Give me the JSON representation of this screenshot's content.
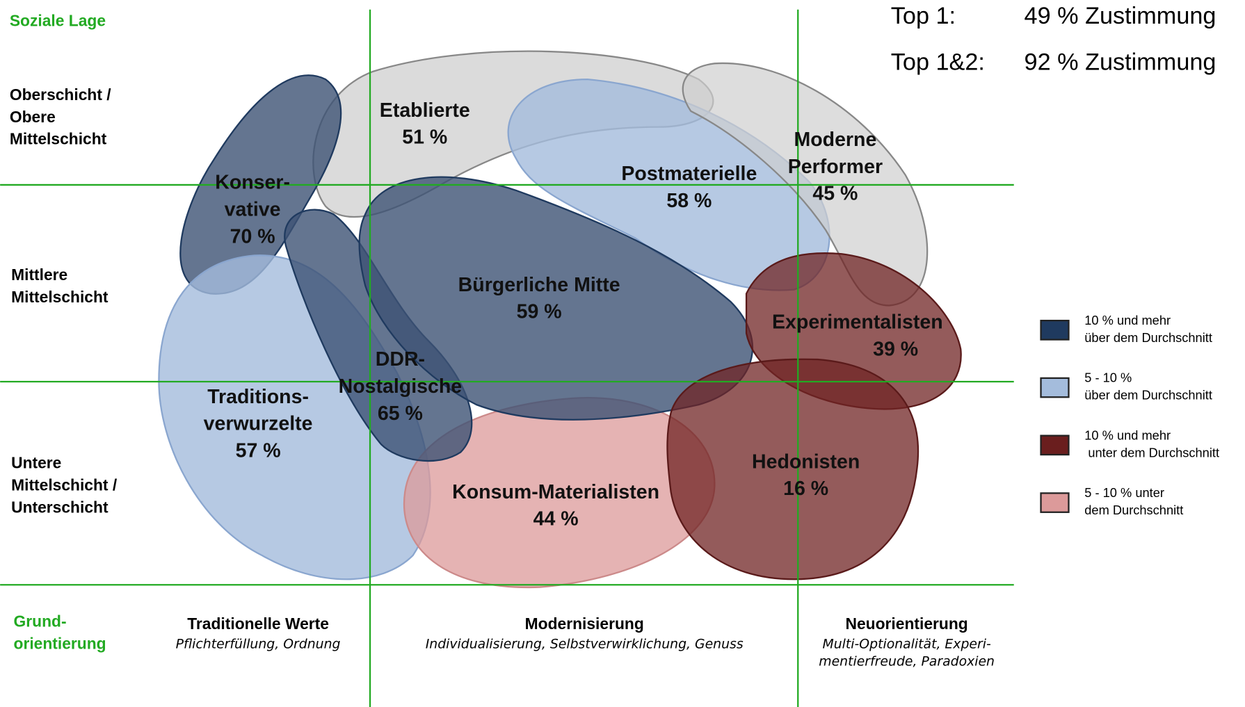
{
  "header": {
    "axis_title": "Soziale Lage",
    "top": [
      {
        "label": "Top 1:",
        "value": "49 % Zustimmung"
      },
      {
        "label": "Top 1&2:",
        "value": "92 % Zustimmung"
      }
    ]
  },
  "rows": [
    {
      "lines": [
        "Oberschicht /",
        "Obere",
        "Mittelschicht"
      ]
    },
    {
      "lines": [
        "Mittlere",
        "Mittelschicht"
      ]
    },
    {
      "lines": [
        "Untere",
        "Mittelschicht /",
        "Unterschicht"
      ]
    }
  ],
  "x_axis": {
    "title_lines": [
      "Grund-",
      "orientierung"
    ],
    "groups": [
      {
        "name": "Traditionelle Werte",
        "desc": [
          "Pflichterfüllung, Ordnung"
        ]
      },
      {
        "name": "Modernisierung",
        "desc": [
          "Individualisierung, Selbstverwirklichung, Genuss"
        ]
      },
      {
        "name": "Neuorientierung",
        "desc": [
          "Multi-Optionalität, Experi-",
          "mentierfreude, Paradoxien"
        ]
      }
    ]
  },
  "milieus": [
    {
      "name": [
        "Etablierte"
      ],
      "share": "51 %"
    },
    {
      "name": [
        "Postmaterielle"
      ],
      "share": "58 %"
    },
    {
      "name": [
        "Moderne",
        "Performer"
      ],
      "share": "45 %"
    },
    {
      "name": [
        "Konser-",
        "vative"
      ],
      "share": "70 %"
    },
    {
      "name": [
        "Traditions-",
        "verwurzelte"
      ],
      "share": "57 %"
    },
    {
      "name": [
        "DDR-",
        "Nostalgische"
      ],
      "share": "65 %"
    },
    {
      "name": [
        "Bürgerliche Mitte"
      ],
      "share": "59 %"
    },
    {
      "name": [
        "Konsum-Materialisten"
      ],
      "share": "44 %"
    },
    {
      "name": [
        "Hedonisten"
      ],
      "share": "16 %"
    },
    {
      "name": [
        "Experimentalisten"
      ],
      "share": "39 %"
    }
  ],
  "legend": [
    {
      "lines": [
        "10 % und mehr",
        "über dem Durchschnitt"
      ]
    },
    {
      "lines": [
        "5 - 10 %",
        "über dem Durchschnitt"
      ]
    },
    {
      "lines": [
        "10 % und mehr",
        " unter dem Durchschnitt"
      ]
    },
    {
      "lines": [
        "5 - 10 % unter",
        "dem Durchschnitt"
      ]
    }
  ]
}
